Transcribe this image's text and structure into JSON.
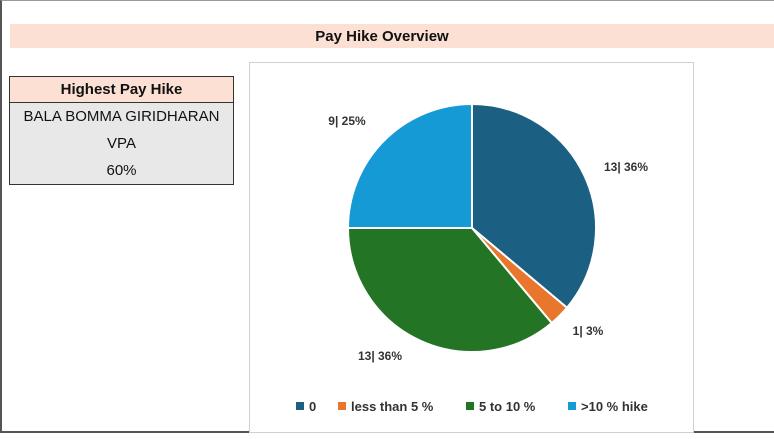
{
  "header": {
    "title": "Pay Hike Overview"
  },
  "highest_hike": {
    "heading": "Highest Pay Hike",
    "name": "BALA BOMMA GIRIDHARAN",
    "role": "VPA",
    "value": "60%"
  },
  "chart_data": {
    "type": "pie",
    "title": "",
    "legend_position": "bottom",
    "slices": [
      {
        "label": "0",
        "value": 13,
        "percent": 36,
        "data_label": "13| 36%",
        "color": "#1b5f82"
      },
      {
        "label": "less than 5 %",
        "value": 1,
        "percent": 3,
        "data_label": "1| 3%",
        "color": "#e8762c"
      },
      {
        "label": "5 to 10 %",
        "value": 13,
        "percent": 36,
        "data_label": "13| 36%",
        "color": "#247425"
      },
      {
        "label": ">10 % hike",
        "value": 9,
        "percent": 25,
        "data_label": "9| 25%",
        "color": "#159ad6"
      }
    ]
  }
}
